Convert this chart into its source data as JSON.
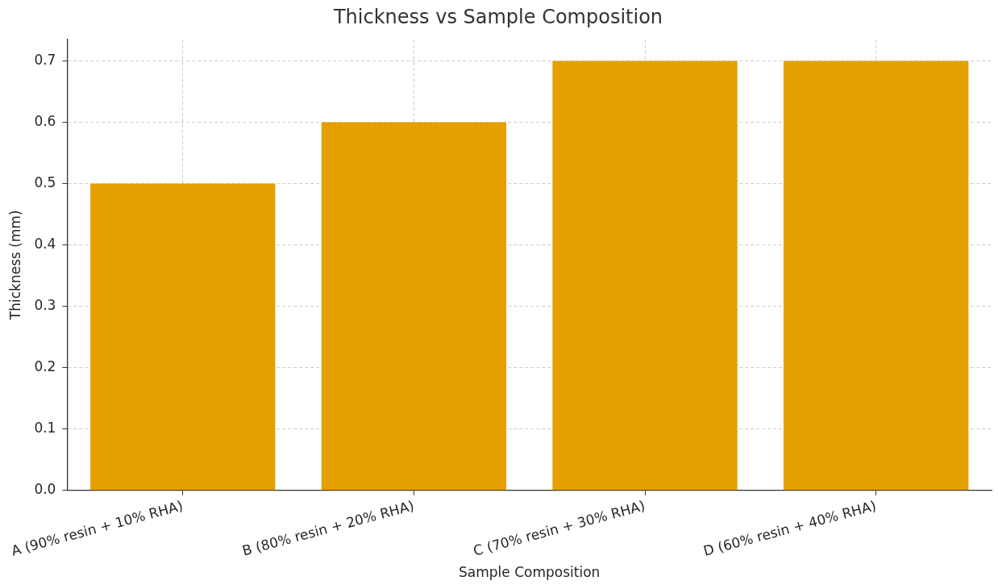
{
  "chart_data": {
    "type": "bar",
    "title": "Thickness vs Sample Composition",
    "xlabel": "Sample Composition",
    "ylabel": "Thickness (mm)",
    "categories": [
      "A (90% resin + 10% RHA)",
      "B (80% resin + 20% RHA)",
      "C (70% resin + 30% RHA)",
      "D (60% resin + 40% RHA)"
    ],
    "values": [
      0.5,
      0.6,
      0.7,
      0.7
    ],
    "color": "#e5a000",
    "ylim": [
      0,
      0.735
    ],
    "yticks": [
      {
        "value": 0,
        "label": "0.0"
      },
      0.1,
      0.2,
      0.3,
      0.4,
      0.5,
      0.6,
      0.7
    ],
    "grid": true
  }
}
